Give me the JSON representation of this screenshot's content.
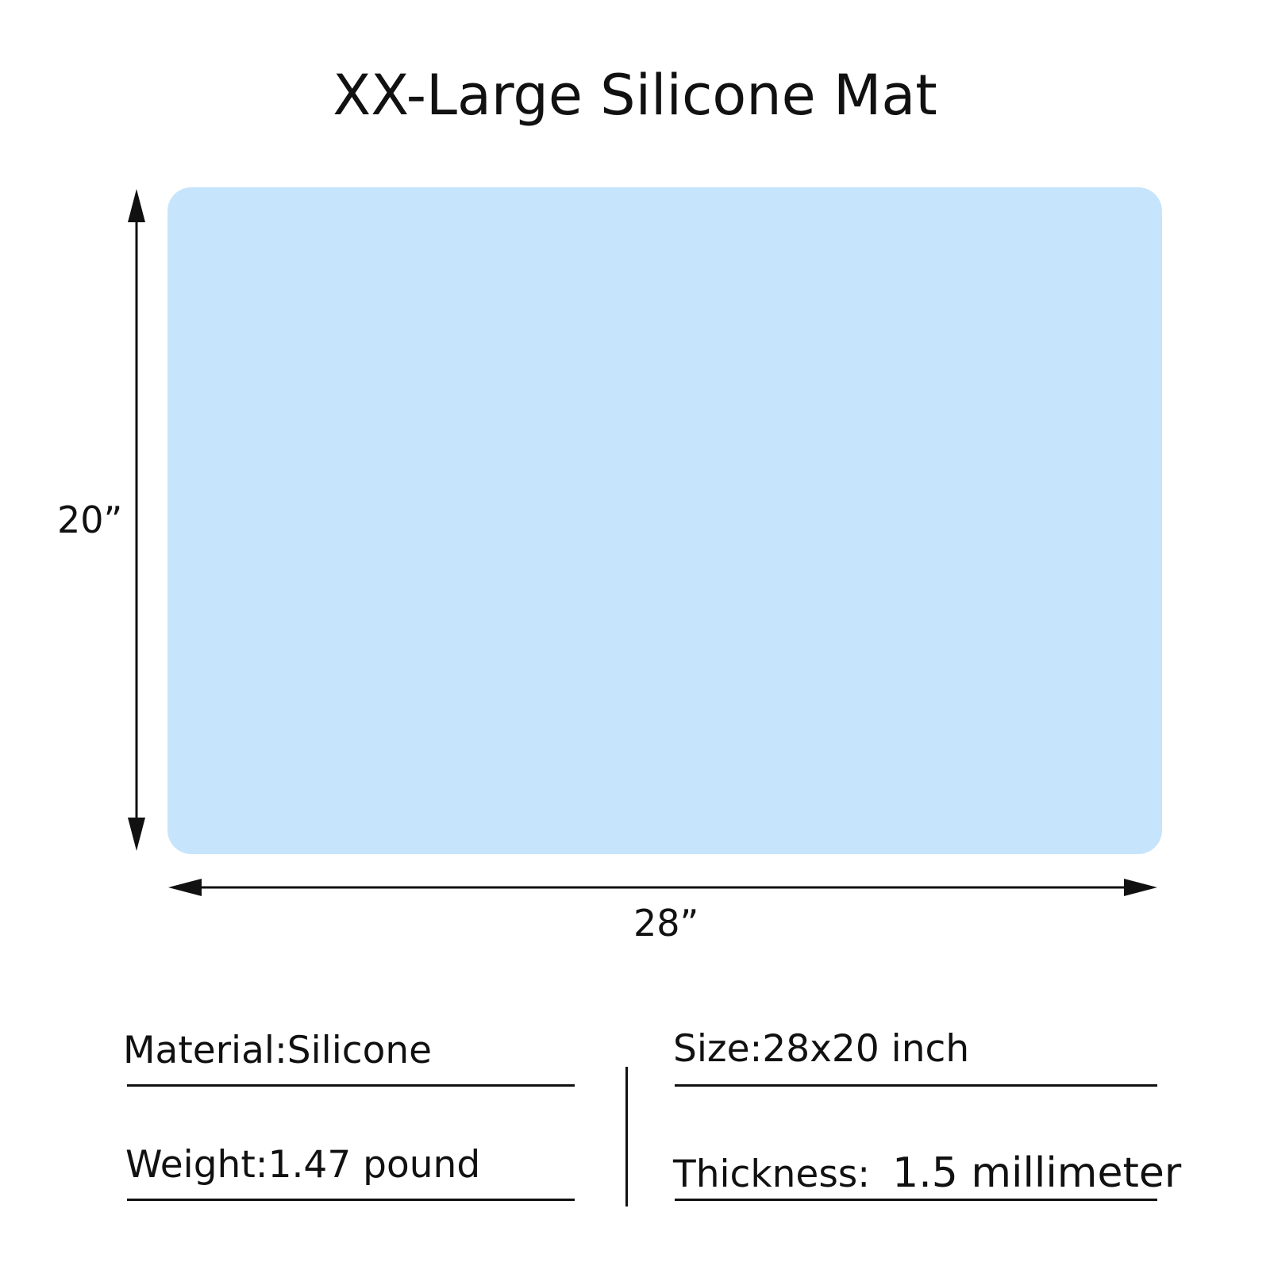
{
  "title": "XX-Large Silicone Mat",
  "mat_color": "#c6e5fc",
  "dimensions": {
    "height_label": "20”",
    "width_label": "28”"
  },
  "specs": {
    "material": "Material:Silicone",
    "size": "Size:28x20 inch",
    "weight": "Weight:1.47 pound",
    "thickness_label": "Thickness:",
    "thickness_value": "1.5 millimeter"
  }
}
